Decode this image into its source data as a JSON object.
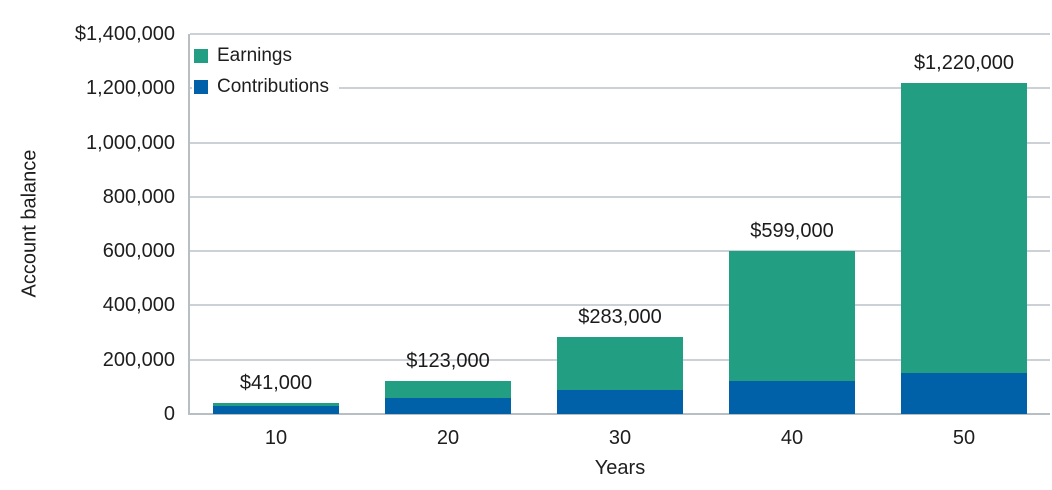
{
  "chart_data": {
    "type": "bar",
    "stacked": true,
    "title": "",
    "xlabel": "Years",
    "ylabel": "Account balance",
    "ylim": [
      0,
      1400000
    ],
    "ytick_step": 200000,
    "grid": true,
    "legend_position": "top-left",
    "yticks": [
      {
        "value": 0,
        "label": "0"
      },
      {
        "value": 200000,
        "label": "200,000"
      },
      {
        "value": 400000,
        "label": "400,000"
      },
      {
        "value": 600000,
        "label": "600,000"
      },
      {
        "value": 800000,
        "label": "800,000"
      },
      {
        "value": 1000000,
        "label": "1,000,000"
      },
      {
        "value": 1200000,
        "label": "1,200,000"
      },
      {
        "value": 1400000,
        "label": "$1,400,000"
      }
    ],
    "categories": [
      "10",
      "20",
      "30",
      "40",
      "50"
    ],
    "series": [
      {
        "name": "Contributions",
        "color": "#0061a8",
        "values": [
          30000,
          60000,
          90000,
          120000,
          150000
        ]
      },
      {
        "name": "Earnings",
        "color": "#229e82",
        "values": [
          11000,
          63000,
          193000,
          479000,
          1070000
        ]
      }
    ],
    "totals": [
      41000,
      123000,
      283000,
      599000,
      1220000
    ],
    "total_labels": [
      "$41,000",
      "$123,000",
      "$283,000",
      "$599,000",
      "$1,220,000"
    ],
    "legend": [
      {
        "label": "Earnings",
        "color": "#229e82"
      },
      {
        "label": "Contributions",
        "color": "#0061a8"
      }
    ]
  }
}
